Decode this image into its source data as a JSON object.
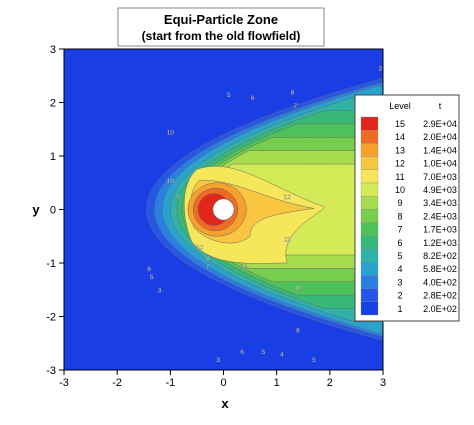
{
  "chart_data": {
    "type": "contour",
    "title": "Equi-Particle Zone",
    "subtitle": "(start from the old flowfield)",
    "xlabel": "x",
    "ylabel": "y",
    "xlim": [
      -3,
      3
    ],
    "ylim": [
      -3,
      3
    ],
    "x_ticks": [
      "-3",
      "-2",
      "-1",
      "0",
      "1",
      "2",
      "3"
    ],
    "y_ticks": [
      "-3",
      "-2",
      "-1",
      "0",
      "1",
      "2",
      "3"
    ],
    "grid": false,
    "legend_placement": "right",
    "legend": {
      "header_level": "Level",
      "header_value": "t",
      "entries": [
        {
          "level": "15",
          "value": "2.9E+04",
          "color": "#e3261b"
        },
        {
          "level": "14",
          "value": "2.0E+04",
          "color": "#ef6a22"
        },
        {
          "level": "13",
          "value": "1.4E+04",
          "color": "#f6a12d"
        },
        {
          "level": "12",
          "value": "1.0E+04",
          "color": "#f8c640"
        },
        {
          "level": "11",
          "value": "7.0E+03",
          "color": "#f5e65a"
        },
        {
          "level": "10",
          "value": "4.9E+03",
          "color": "#d4ea57"
        },
        {
          "level": "9",
          "value": "3.4E+03",
          "color": "#a6dc4e"
        },
        {
          "level": "8",
          "value": "2.4E+03",
          "color": "#77cd4c"
        },
        {
          "level": "7",
          "value": "1.7E+03",
          "color": "#4dc25a"
        },
        {
          "level": "6",
          "value": "1.2E+03",
          "color": "#37b879"
        },
        {
          "level": "5",
          "value": "8.2E+02",
          "color": "#2fb3a6"
        },
        {
          "level": "4",
          "value": "5.8E+02",
          "color": "#2aa2cf"
        },
        {
          "level": "3",
          "value": "4.0E+02",
          "color": "#2a7fe3"
        },
        {
          "level": "2",
          "value": "2.8E+02",
          "color": "#2457e8"
        },
        {
          "level": "1",
          "value": "2.0E+02",
          "color": "#1a3ee6"
        }
      ]
    },
    "contour_bands": [
      {
        "level": 1,
        "nose_x": -3.0,
        "ry": 3.2,
        "k": 2.2
      },
      {
        "level": 2,
        "nose_x": -1.45,
        "ry": 2.7,
        "k": 2.0
      },
      {
        "level": 3,
        "nose_x": -1.3,
        "ry": 2.5,
        "k": 1.9
      },
      {
        "level": 4,
        "nose_x": -1.15,
        "ry": 2.3,
        "k": 1.75
      },
      {
        "level": 5,
        "nose_x": -1.0,
        "ry": 2.1,
        "k": 1.65
      },
      {
        "level": 6,
        "nose_x": -0.88,
        "ry": 1.85,
        "k": 1.5
      },
      {
        "level": 7,
        "nose_x": -0.78,
        "ry": 1.6,
        "k": 1.35
      },
      {
        "level": 8,
        "nose_x": -0.7,
        "ry": 1.35,
        "k": 1.2
      },
      {
        "level": 9,
        "nose_x": -0.62,
        "ry": 1.1,
        "k": 1.0
      },
      {
        "level": 10,
        "nose_x": -0.55,
        "ry": 0.85,
        "k": 0.85
      }
    ],
    "contour_labels": [
      {
        "text": "5",
        "x": 0.1,
        "y": 2.1
      },
      {
        "text": "6",
        "x": 0.55,
        "y": 2.05
      },
      {
        "text": "8",
        "x": 1.3,
        "y": 2.15
      },
      {
        "text": "7",
        "x": 1.35,
        "y": 1.9
      },
      {
        "text": "3",
        "x": 2.95,
        "y": 2.6
      },
      {
        "text": "6",
        "x": 2.9,
        "y": 2.05
      },
      {
        "text": "10",
        "x": -1.0,
        "y": 1.4
      },
      {
        "text": "10",
        "x": -1.0,
        "y": 0.5
      },
      {
        "text": "9",
        "x": -0.85,
        "y": 0.2
      },
      {
        "text": "7",
        "x": -0.9,
        "y": -0.1
      },
      {
        "text": "12",
        "x": 1.2,
        "y": 0.2
      },
      {
        "text": "11",
        "x": 1.2,
        "y": -0.6
      },
      {
        "text": "11",
        "x": 0.4,
        "y": -1.1
      },
      {
        "text": "10",
        "x": -0.45,
        "y": -0.75
      },
      {
        "text": "8",
        "x": -0.3,
        "y": -0.95
      },
      {
        "text": "7",
        "x": -0.3,
        "y": -1.1
      },
      {
        "text": "6",
        "x": -1.4,
        "y": -1.15
      },
      {
        "text": "5",
        "x": -1.35,
        "y": -1.3
      },
      {
        "text": "3",
        "x": -1.2,
        "y": -1.55
      },
      {
        "text": "10",
        "x": 1.4,
        "y": -1.5
      },
      {
        "text": "8",
        "x": 1.4,
        "y": -2.3
      },
      {
        "text": "6",
        "x": 0.35,
        "y": -2.7
      },
      {
        "text": "5",
        "x": 0.75,
        "y": -2.7
      },
      {
        "text": "4",
        "x": 1.1,
        "y": -2.75
      },
      {
        "text": "3",
        "x": -0.1,
        "y": -2.85
      },
      {
        "text": "5",
        "x": 1.7,
        "y": -2.85
      }
    ]
  }
}
